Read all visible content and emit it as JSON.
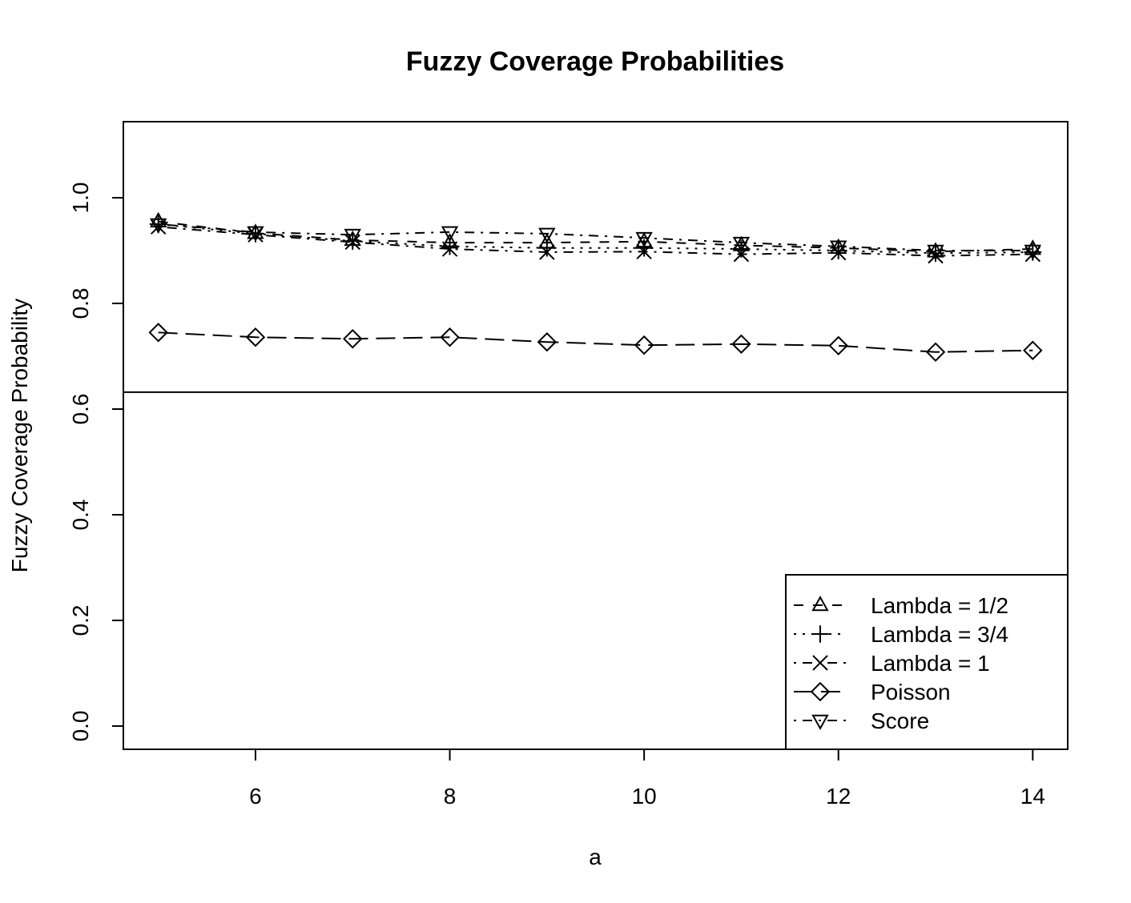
{
  "chart_data": {
    "type": "line",
    "title": "Fuzzy Coverage Probabilities",
    "x_label": "a",
    "y_label": "Fuzzy Coverage Probability",
    "x": [
      5,
      6,
      7,
      8,
      9,
      10,
      11,
      12,
      13,
      14
    ],
    "series": [
      {
        "name": "Lambda = 1/2",
        "color": "#000000",
        "marker": "triangle-up",
        "line_style": "dashed",
        "values": [
          0.955,
          0.933,
          0.92,
          0.915,
          0.915,
          0.917,
          0.91,
          0.905,
          0.898,
          0.903
        ]
      },
      {
        "name": "Lambda = 3/4",
        "color": "#000000",
        "marker": "plus",
        "line_style": "dotted",
        "values": [
          0.95,
          0.932,
          0.918,
          0.908,
          0.905,
          0.905,
          0.903,
          0.9,
          0.895,
          0.897
        ]
      },
      {
        "name": "Lambda = 1",
        "color": "#000000",
        "marker": "cross",
        "line_style": "dotdash",
        "values": [
          0.945,
          0.93,
          0.916,
          0.903,
          0.897,
          0.898,
          0.893,
          0.896,
          0.89,
          0.893
        ]
      },
      {
        "name": "Poisson",
        "color": "#000000",
        "marker": "diamond",
        "line_style": "longdash",
        "values": [
          0.745,
          0.736,
          0.733,
          0.736,
          0.727,
          0.721,
          0.723,
          0.72,
          0.708,
          0.711
        ]
      },
      {
        "name": "Score",
        "color": "#000000",
        "marker": "triangle-down",
        "line_style": "dotdash",
        "values": [
          0.95,
          0.935,
          0.93,
          0.935,
          0.932,
          0.924,
          0.915,
          0.908,
          0.9,
          0.9
        ]
      }
    ],
    "hline": 0.632,
    "xlim": [
      4.64,
      14.36
    ],
    "ylim": [
      -0.044,
      1.144
    ],
    "xticks": [
      6,
      8,
      10,
      12,
      14
    ],
    "yticks": [
      {
        "value": 0,
        "label": "0.0"
      },
      {
        "value": 0.2,
        "label": "0.2"
      },
      {
        "value": 0.4,
        "label": "0.4"
      },
      {
        "value": 0.6,
        "label": "0.6"
      },
      {
        "value": 0.8,
        "label": "0.8"
      },
      {
        "value": 1,
        "label": "1.0"
      }
    ],
    "legend": "bottom-right",
    "grid": false
  }
}
